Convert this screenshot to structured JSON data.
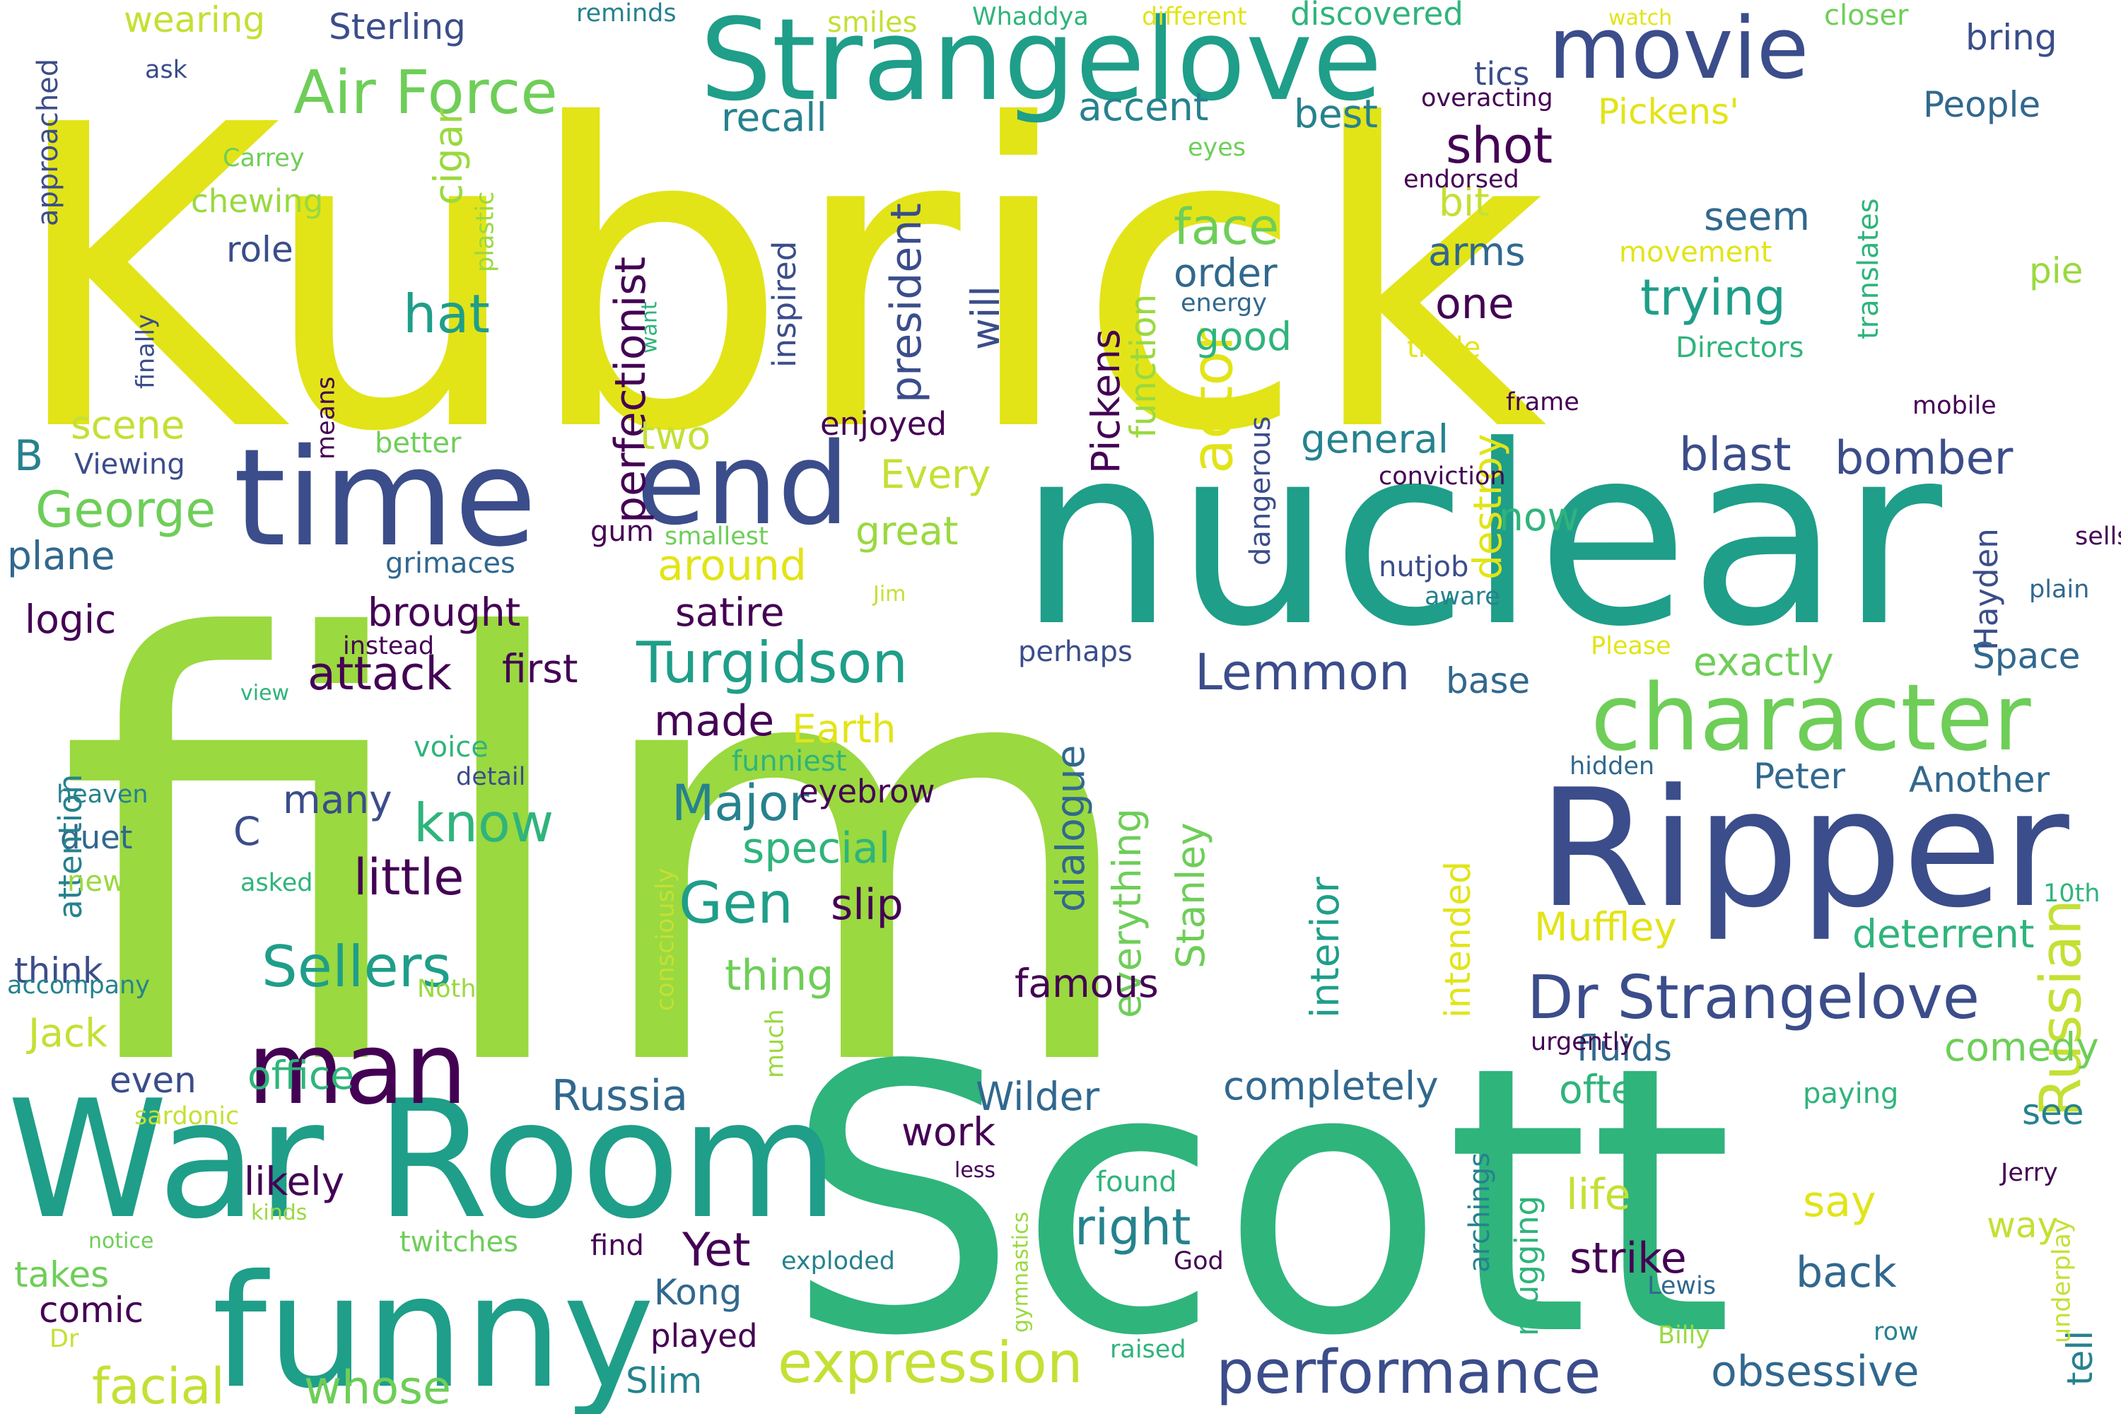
{
  "palette": {
    "deep_purple": "#440154",
    "indigo": "#3b4d8a",
    "slate_blue": "#31688e",
    "teal_blue": "#26828e",
    "teal": "#1f9e89",
    "sea_green": "#2fb47c",
    "green": "#6ece58",
    "lime": "#9ad93f",
    "yellow_green": "#c4e034",
    "yellow": "#e2e418"
  },
  "words": [
    {
      "text": "Kubrick",
      "color": "#e2e418"
    },
    {
      "text": "film",
      "color": "#9ad93f"
    },
    {
      "text": "Scott",
      "color": "#2fb47c"
    },
    {
      "text": "nuclear",
      "color": "#1f9e89"
    },
    {
      "text": "Ripper",
      "color": "#3b4d8a"
    },
    {
      "text": "War Room",
      "color": "#1f9e89"
    },
    {
      "text": "funny",
      "color": "#1f9e89"
    },
    {
      "text": "time",
      "color": "#3b4d8a"
    },
    {
      "text": "Strangelove",
      "color": "#1f9e89"
    },
    {
      "text": "movie",
      "color": "#3b4d8a"
    },
    {
      "text": "end",
      "color": "#3b4d8a"
    },
    {
      "text": "man",
      "color": "#440154"
    },
    {
      "text": "character",
      "color": "#6ece58"
    },
    {
      "text": "Dr Strangelove",
      "color": "#3b4d8a"
    },
    {
      "text": "performance",
      "color": "#3b4d8a"
    },
    {
      "text": "expression",
      "color": "#c4e034"
    },
    {
      "text": "Air Force",
      "color": "#6ece58"
    },
    {
      "text": "Sellers",
      "color": "#1f9e89"
    },
    {
      "text": "Turgidson",
      "color": "#1f9e89"
    },
    {
      "text": "actor",
      "color": "#e2e418"
    },
    {
      "text": "Russian",
      "color": "#c4e034"
    },
    {
      "text": "Gen",
      "color": "#1f9e89"
    },
    {
      "text": "Major",
      "color": "#26828e"
    },
    {
      "text": "know",
      "color": "#2fb47c"
    },
    {
      "text": "trying",
      "color": "#1f9e89"
    },
    {
      "text": "face",
      "color": "#6ece58"
    },
    {
      "text": "hat",
      "color": "#1f9e89"
    },
    {
      "text": "George",
      "color": "#6ece58"
    },
    {
      "text": "Lemmon",
      "color": "#3b4d8a"
    },
    {
      "text": "attack",
      "color": "#440154"
    },
    {
      "text": "little",
      "color": "#440154"
    },
    {
      "text": "facial",
      "color": "#c4e034"
    },
    {
      "text": "whose",
      "color": "#6ece58"
    },
    {
      "text": "right",
      "color": "#26828e"
    },
    {
      "text": "blast",
      "color": "#3b4d8a"
    },
    {
      "text": "bomber",
      "color": "#3b4d8a"
    },
    {
      "text": "shot",
      "color": "#440154"
    },
    {
      "text": "perfectionist",
      "color": "#440154"
    },
    {
      "text": "president",
      "color": "#3b4d8a"
    },
    {
      "text": "Yet",
      "color": "#440154"
    },
    {
      "text": "strike",
      "color": "#440154"
    },
    {
      "text": "back",
      "color": "#31688e"
    },
    {
      "text": "Russia",
      "color": "#31688e"
    },
    {
      "text": "Wilder",
      "color": "#31688e"
    },
    {
      "text": "completely",
      "color": "#31688e"
    },
    {
      "text": "obsessive",
      "color": "#31688e"
    },
    {
      "text": "say",
      "color": "#e2e418"
    },
    {
      "text": "life",
      "color": "#c4e034"
    },
    {
      "text": "often",
      "color": "#2fb47c"
    },
    {
      "text": "Jack",
      "color": "#c4e034"
    },
    {
      "text": "comedy",
      "color": "#6ece58"
    },
    {
      "text": "deterrent",
      "color": "#2fb47c"
    },
    {
      "text": "Muffley",
      "color": "#e2e418"
    },
    {
      "text": "fluids",
      "color": "#31688e"
    },
    {
      "text": "dialogue",
      "color": "#31688e"
    },
    {
      "text": "everything",
      "color": "#6ece58"
    },
    {
      "text": "Stanley",
      "color": "#6ece58"
    },
    {
      "text": "interior",
      "color": "#1f9e89"
    },
    {
      "text": "intended",
      "color": "#e2e418"
    },
    {
      "text": "famous",
      "color": "#440154"
    },
    {
      "text": "special",
      "color": "#2fb47c"
    },
    {
      "text": "slip",
      "color": "#440154"
    },
    {
      "text": "thing",
      "color": "#6ece58"
    },
    {
      "text": "made",
      "color": "#440154"
    },
    {
      "text": "Earth",
      "color": "#e2e418"
    },
    {
      "text": "many",
      "color": "#3b4d8a"
    },
    {
      "text": "C",
      "color": "#3b4d8a"
    },
    {
      "text": "first",
      "color": "#440154"
    },
    {
      "text": "brought",
      "color": "#440154"
    },
    {
      "text": "satire",
      "color": "#440154"
    },
    {
      "text": "logic",
      "color": "#440154"
    },
    {
      "text": "plane",
      "color": "#31688e"
    },
    {
      "text": "B",
      "color": "#26828e"
    },
    {
      "text": "scene",
      "color": "#c4e034"
    },
    {
      "text": "around",
      "color": "#e2e418"
    },
    {
      "text": "great",
      "color": "#9ad93f"
    },
    {
      "text": "Every",
      "color": "#c4e034"
    },
    {
      "text": "two",
      "color": "#c4e034"
    },
    {
      "text": "now",
      "color": "#2fb47c"
    },
    {
      "text": "general",
      "color": "#26828e"
    },
    {
      "text": "destroy",
      "color": "#e2e418"
    },
    {
      "text": "good",
      "color": "#2fb47c"
    },
    {
      "text": "order",
      "color": "#31688e"
    },
    {
      "text": "function",
      "color": "#9ad93f"
    },
    {
      "text": "Pickens",
      "color": "#440154"
    },
    {
      "text": "will",
      "color": "#3b4d8a"
    },
    {
      "text": "seem",
      "color": "#31688e"
    },
    {
      "text": "one",
      "color": "#440154"
    },
    {
      "text": "arms",
      "color": "#31688e"
    },
    {
      "text": "bit",
      "color": "#c4e034"
    },
    {
      "text": "accent",
      "color": "#26828e"
    },
    {
      "text": "best",
      "color": "#26828e"
    },
    {
      "text": "recall",
      "color": "#26828e"
    },
    {
      "text": "cigar",
      "color": "#9ad93f"
    },
    {
      "text": "role",
      "color": "#3b4d8a"
    },
    {
      "text": "Sterling",
      "color": "#3b4d8a"
    },
    {
      "text": "wearing",
      "color": "#c4e034"
    },
    {
      "text": "bring",
      "color": "#3b4d8a"
    },
    {
      "text": "People",
      "color": "#31688e"
    },
    {
      "text": "pie",
      "color": "#9ad93f"
    },
    {
      "text": "Pickens'",
      "color": "#e2e418"
    },
    {
      "text": "tics",
      "color": "#3b4d8a"
    },
    {
      "text": "discovered",
      "color": "#2fb47c"
    },
    {
      "text": "closer",
      "color": "#6ece58"
    },
    {
      "text": "Hayden",
      "color": "#3b4d8a"
    },
    {
      "text": "Space",
      "color": "#31688e"
    },
    {
      "text": "Another",
      "color": "#31688e"
    },
    {
      "text": "Peter",
      "color": "#31688e"
    },
    {
      "text": "exactly",
      "color": "#6ece58"
    },
    {
      "text": "base",
      "color": "#31688e"
    },
    {
      "text": "Kong",
      "color": "#31688e"
    },
    {
      "text": "Slim",
      "color": "#26828e"
    },
    {
      "text": "played",
      "color": "#440154"
    },
    {
      "text": "work",
      "color": "#440154"
    },
    {
      "text": "likely",
      "color": "#440154"
    },
    {
      "text": "office",
      "color": "#2fb47c"
    },
    {
      "text": "even",
      "color": "#3b4d8a"
    },
    {
      "text": "think",
      "color": "#3b4d8a"
    },
    {
      "text": "comic",
      "color": "#440154"
    },
    {
      "text": "takes",
      "color": "#6ece58"
    },
    {
      "text": "duet",
      "color": "#31688e"
    },
    {
      "text": "attention",
      "color": "#26828e"
    },
    {
      "text": "tell",
      "color": "#26828e"
    },
    {
      "text": "way",
      "color": "#c4e034"
    },
    {
      "text": "see",
      "color": "#26828e"
    },
    {
      "text": "mugging",
      "color": "#2fb47c"
    },
    {
      "text": "archings",
      "color": "#26828e"
    },
    {
      "text": "found",
      "color": "#2fb47c"
    },
    {
      "text": "find",
      "color": "#440154"
    },
    {
      "text": "twitches",
      "color": "#6ece58"
    },
    {
      "text": "voice",
      "color": "#2fb47c"
    },
    {
      "text": "funniest",
      "color": "#2fb47c"
    },
    {
      "text": "eyebrow",
      "color": "#440154"
    },
    {
      "text": "perhaps",
      "color": "#3b4d8a"
    },
    {
      "text": "nutjob",
      "color": "#3b4d8a"
    },
    {
      "text": "dangerous",
      "color": "#3b4d8a"
    },
    {
      "text": "grimaces",
      "color": "#31688e"
    },
    {
      "text": "gum",
      "color": "#440154"
    },
    {
      "text": "smallest",
      "color": "#6ece58"
    },
    {
      "text": "instead",
      "color": "#440154"
    },
    {
      "text": "Jim",
      "color": "#c4e034"
    },
    {
      "text": "view",
      "color": "#2fb47c"
    },
    {
      "text": "heaven",
      "color": "#26828e"
    },
    {
      "text": "detail",
      "color": "#3b4d8a"
    },
    {
      "text": "new",
      "color": "#9ad93f"
    },
    {
      "text": "asked",
      "color": "#2fb47c"
    },
    {
      "text": "accompany",
      "color": "#26828e"
    },
    {
      "text": "Nothing",
      "color": "#9ad93f"
    },
    {
      "text": "sardonic",
      "color": "#c4e034"
    },
    {
      "text": "kinds",
      "color": "#9ad93f"
    },
    {
      "text": "notice",
      "color": "#6ece58"
    },
    {
      "text": "Dr",
      "color": "#c4e034"
    },
    {
      "text": "consciously",
      "color": "#c4e034"
    },
    {
      "text": "much",
      "color": "#9ad93f"
    },
    {
      "text": "less",
      "color": "#440154"
    },
    {
      "text": "exploded",
      "color": "#26828e"
    },
    {
      "text": "gymnastics",
      "color": "#9ad93f"
    },
    {
      "text": "raised",
      "color": "#2fb47c"
    },
    {
      "text": "God",
      "color": "#440154"
    },
    {
      "text": "Lewis",
      "color": "#31688e"
    },
    {
      "text": "Billy",
      "color": "#9ad93f"
    },
    {
      "text": "row",
      "color": "#26828e"
    },
    {
      "text": "Jerry",
      "color": "#440154"
    },
    {
      "text": "underplay",
      "color": "#c4e034"
    },
    {
      "text": "paying",
      "color": "#2fb47c"
    },
    {
      "text": "urgently",
      "color": "#440154"
    },
    {
      "text": "10th",
      "color": "#2fb47c"
    },
    {
      "text": "hidden",
      "color": "#31688e"
    },
    {
      "text": "Please",
      "color": "#e2e418"
    },
    {
      "text": "aware",
      "color": "#26828e"
    },
    {
      "text": "plain",
      "color": "#31688e"
    },
    {
      "text": "sells",
      "color": "#440154"
    },
    {
      "text": "conviction",
      "color": "#440154"
    },
    {
      "text": "frame",
      "color": "#440154"
    },
    {
      "text": "mobile",
      "color": "#440154"
    },
    {
      "text": "enjoyed",
      "color": "#440154"
    },
    {
      "text": "better",
      "color": "#6ece58"
    },
    {
      "text": "means",
      "color": "#440154"
    },
    {
      "text": "Viewing",
      "color": "#3b4d8a"
    },
    {
      "text": "triple",
      "color": "#e2e418"
    },
    {
      "text": "Directors",
      "color": "#2fb47c"
    },
    {
      "text": "energy",
      "color": "#31688e"
    },
    {
      "text": "movement",
      "color": "#e2e418"
    },
    {
      "text": "translates",
      "color": "#2fb47c"
    },
    {
      "text": "endorsed",
      "color": "#440154"
    },
    {
      "text": "eyes",
      "color": "#6ece58"
    },
    {
      "text": "overacting",
      "color": "#440154"
    },
    {
      "text": "watch",
      "color": "#e2e418"
    },
    {
      "text": "different",
      "color": "#e2e418"
    },
    {
      "text": "smiles",
      "color": "#c4e034"
    },
    {
      "text": "Whaddya",
      "color": "#2fb47c"
    },
    {
      "text": "reminds",
      "color": "#26828e"
    },
    {
      "text": "ask",
      "color": "#3b4d8a"
    },
    {
      "text": "Carrey",
      "color": "#6ece58"
    },
    {
      "text": "chewing",
      "color": "#9ad93f"
    },
    {
      "text": "plastic",
      "color": "#9ad93f"
    },
    {
      "text": "inspired",
      "color": "#3b4d8a"
    },
    {
      "text": "want",
      "color": "#2fb47c"
    },
    {
      "text": "finally",
      "color": "#3b4d8a"
    },
    {
      "text": "approached",
      "color": "#3b4d8a"
    }
  ]
}
